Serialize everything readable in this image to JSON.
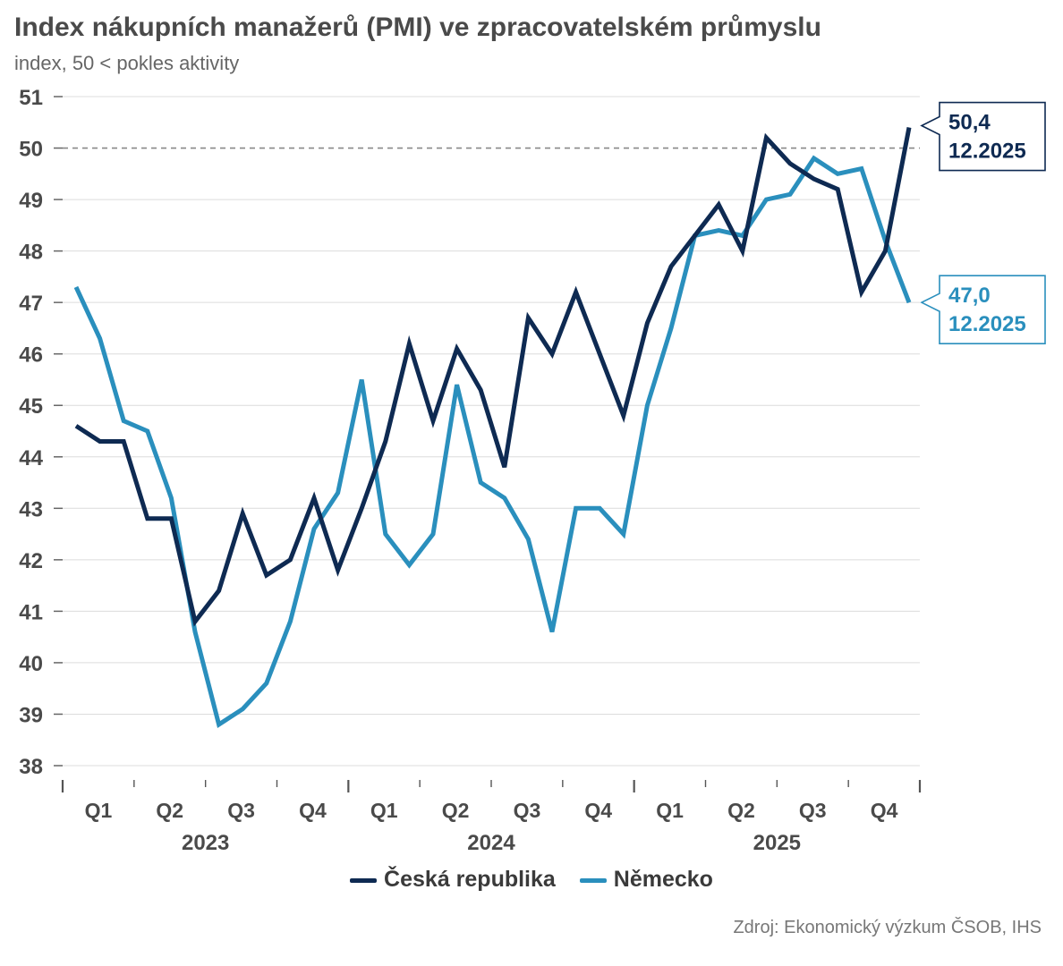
{
  "chart_data": {
    "type": "line",
    "title": "Index nákupních manažerů (PMI) ve zpracovatelském průmyslu",
    "subtitle": "index, 50 < pokles aktivity",
    "ylim": [
      38,
      51
    ],
    "yticks": [
      38,
      39,
      40,
      41,
      42,
      43,
      44,
      45,
      46,
      47,
      48,
      49,
      50,
      51
    ],
    "reference_line": 50,
    "grid": true,
    "legend_position": "bottom",
    "x": [
      "2023-01",
      "2023-02",
      "2023-03",
      "2023-04",
      "2023-05",
      "2023-06",
      "2023-07",
      "2023-08",
      "2023-09",
      "2023-10",
      "2023-11",
      "2023-12",
      "2024-01",
      "2024-02",
      "2024-03",
      "2024-04",
      "2024-05",
      "2024-06",
      "2024-07",
      "2024-08",
      "2024-09",
      "2024-10",
      "2024-11",
      "2024-12",
      "2025-01",
      "2025-02",
      "2025-03",
      "2025-04",
      "2025-05",
      "2025-06",
      "2025-07",
      "2025-08",
      "2025-09",
      "2025-10",
      "2025-11",
      "2025-12"
    ],
    "quarter_labels": [
      "Q1",
      "Q2",
      "Q3",
      "Q4",
      "Q1",
      "Q2",
      "Q3",
      "Q4",
      "Q1",
      "Q2",
      "Q3",
      "Q4"
    ],
    "year_labels": [
      "2023",
      "2024",
      "2025"
    ],
    "series": [
      {
        "name": "Česká republika",
        "color": "#0e2a52",
        "values": [
          44.6,
          44.3,
          44.3,
          42.8,
          42.8,
          40.8,
          41.4,
          42.9,
          41.7,
          42.0,
          43.2,
          41.8,
          43.0,
          44.3,
          46.2,
          44.7,
          46.1,
          45.3,
          43.8,
          46.7,
          46.0,
          47.2,
          46.0,
          44.8,
          46.6,
          47.7,
          48.3,
          48.9,
          48.0,
          50.2,
          49.7,
          49.4,
          49.2,
          47.2,
          48.0,
          50.4
        ]
      },
      {
        "name": "Německo",
        "color": "#2a8fbd",
        "values": [
          47.3,
          46.3,
          44.7,
          44.5,
          43.2,
          40.6,
          38.8,
          39.1,
          39.6,
          40.8,
          42.6,
          43.3,
          45.5,
          42.5,
          41.9,
          42.5,
          45.4,
          43.5,
          43.2,
          42.4,
          40.6,
          43.0,
          43.0,
          42.5,
          45.0,
          46.5,
          48.3,
          48.4,
          48.3,
          49.0,
          49.1,
          49.8,
          49.5,
          49.6,
          48.2,
          47.0
        ]
      }
    ],
    "callouts": [
      {
        "value_label": "50,4",
        "date_label": "12.2025",
        "color": "#0e2a52"
      },
      {
        "value_label": "47,0",
        "date_label": "12.2025",
        "color": "#2a8fbd"
      }
    ],
    "source": "Zdroj: Ekonomický výzkum ČSOB, IHS"
  }
}
